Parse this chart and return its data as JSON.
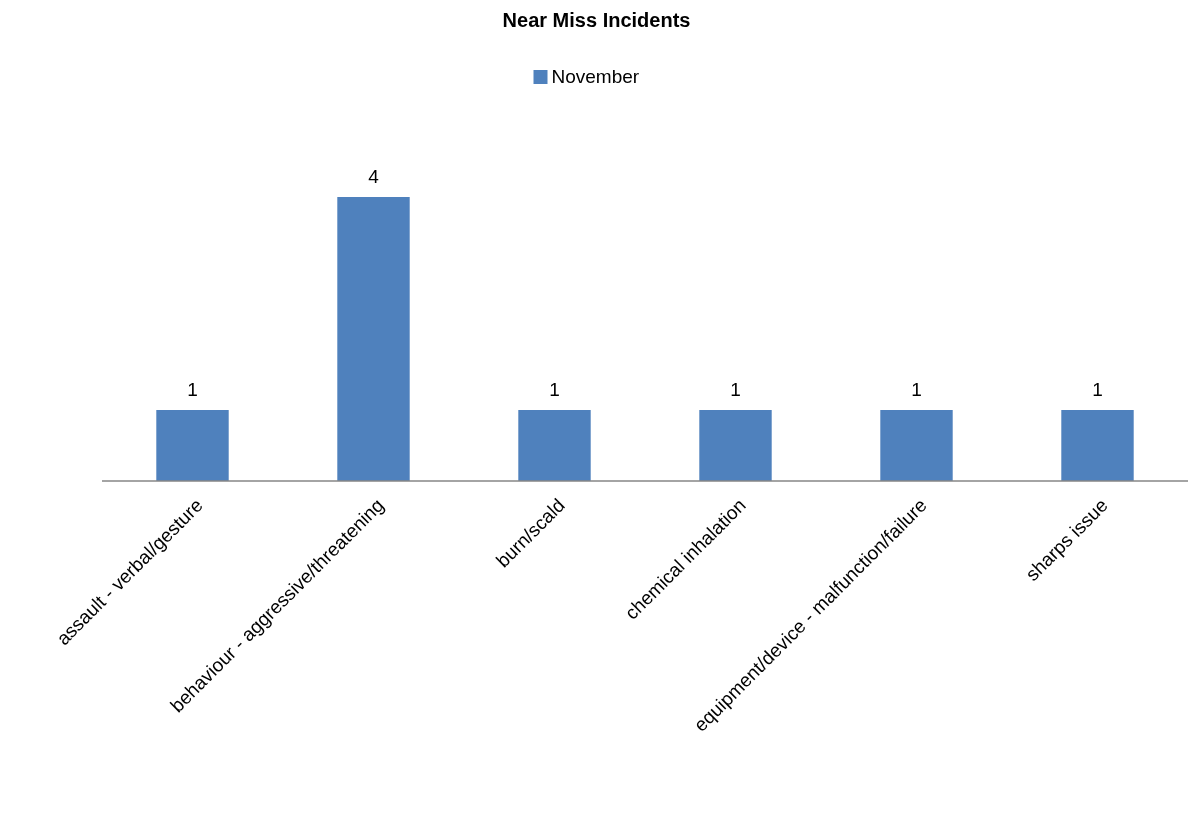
{
  "chart_data": {
    "type": "bar",
    "title": "Near Miss Incidents",
    "categories": [
      "assault - verbal/gesture",
      "behaviour - aggressive/threatening",
      "burn/scald",
      "chemical inhalation",
      "equipment/device - malfunction/failure",
      "sharps issue"
    ],
    "series": [
      {
        "name": "November",
        "color": "#4f81bd",
        "values": [
          1,
          4,
          1,
          1,
          1,
          1
        ]
      }
    ],
    "data_labels": true,
    "legend": "top"
  }
}
